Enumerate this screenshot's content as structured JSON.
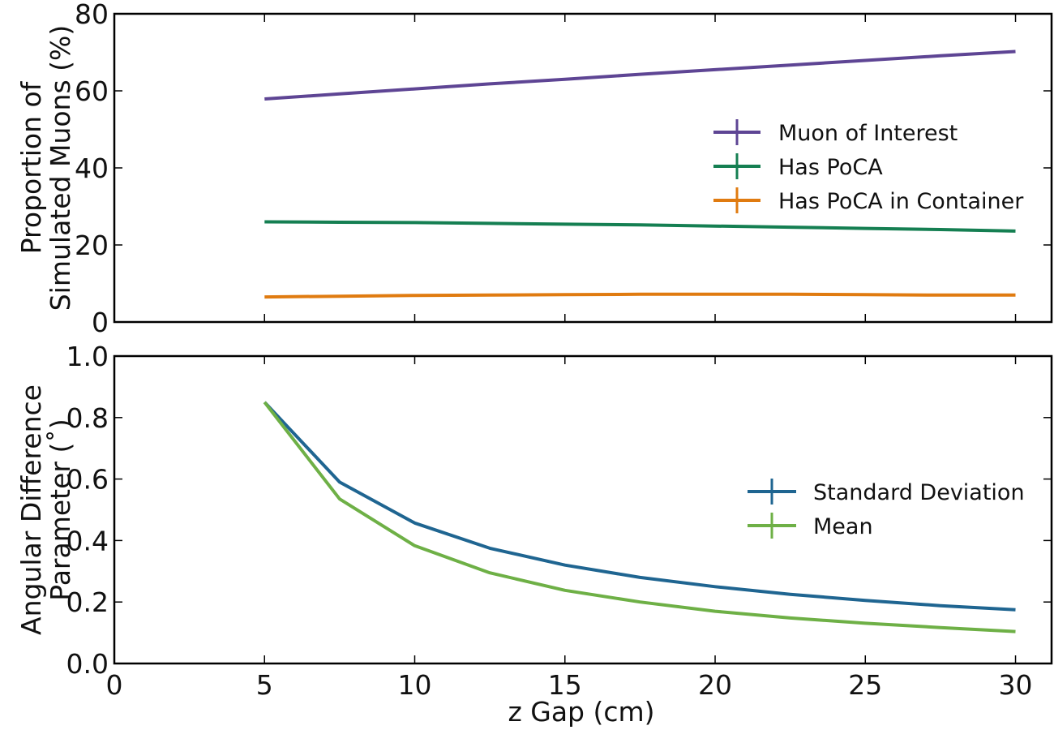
{
  "chart_data": [
    {
      "type": "line",
      "title": "",
      "xlabel": "",
      "ylabel_lines": [
        "Proportion of",
        "Simulated Muons (%)"
      ],
      "xlim": [
        0,
        31.2
      ],
      "ylim": [
        0,
        80
      ],
      "xticks": [
        0,
        5,
        10,
        15,
        20,
        25,
        30
      ],
      "xtick_labels_visible": false,
      "yticks": [
        0,
        20,
        40,
        60,
        80
      ],
      "ytick_labels": [
        "0",
        "20",
        "40",
        "60",
        "80"
      ],
      "x": [
        5,
        7.5,
        10,
        12.5,
        15,
        17.5,
        20,
        22.5,
        25,
        27.5,
        30
      ],
      "legend_location": "center-right",
      "series": [
        {
          "name": "Muon of Interest",
          "color": "#5e4594",
          "values": [
            57.9,
            59.2,
            60.5,
            61.8,
            63.0,
            64.3,
            65.5,
            66.7,
            67.9,
            69.1,
            70.2
          ]
        },
        {
          "name": "Has PoCA",
          "color": "#157f52",
          "values": [
            26.0,
            25.9,
            25.8,
            25.6,
            25.4,
            25.2,
            24.9,
            24.6,
            24.3,
            24.0,
            23.6
          ]
        },
        {
          "name": "Has PoCA in Container",
          "color": "#e07b10",
          "values": [
            6.5,
            6.7,
            6.9,
            7.0,
            7.1,
            7.2,
            7.2,
            7.2,
            7.1,
            7.0,
            7.0
          ]
        }
      ]
    },
    {
      "type": "line",
      "title": "",
      "xlabel": "z Gap (cm)",
      "ylabel_lines": [
        "Angular Difference",
        "Parameter (˚)"
      ],
      "xlim": [
        0,
        31.2
      ],
      "ylim": [
        0,
        1.0
      ],
      "xticks": [
        0,
        5,
        10,
        15,
        20,
        25,
        30
      ],
      "xtick_labels": [
        "0",
        "5",
        "10",
        "15",
        "20",
        "25",
        "30"
      ],
      "xtick_labels_visible": true,
      "yticks": [
        0,
        0.2,
        0.4,
        0.6,
        0.8,
        1.0
      ],
      "ytick_labels": [
        "0.0",
        "0.2",
        "0.4",
        "0.6",
        "0.8",
        "1.0"
      ],
      "x": [
        5,
        7.5,
        10,
        12.5,
        15,
        17.5,
        20,
        22.5,
        25,
        27.5,
        30
      ],
      "legend_location": "center-right",
      "series": [
        {
          "name": "Standard Deviation",
          "color": "#1f6591",
          "values": [
            0.85,
            0.59,
            0.457,
            0.375,
            0.32,
            0.28,
            0.25,
            0.225,
            0.205,
            0.188,
            0.175
          ]
        },
        {
          "name": "Mean",
          "color": "#6eb046",
          "values": [
            0.85,
            0.535,
            0.383,
            0.295,
            0.238,
            0.2,
            0.17,
            0.148,
            0.131,
            0.117,
            0.104
          ]
        }
      ]
    }
  ]
}
